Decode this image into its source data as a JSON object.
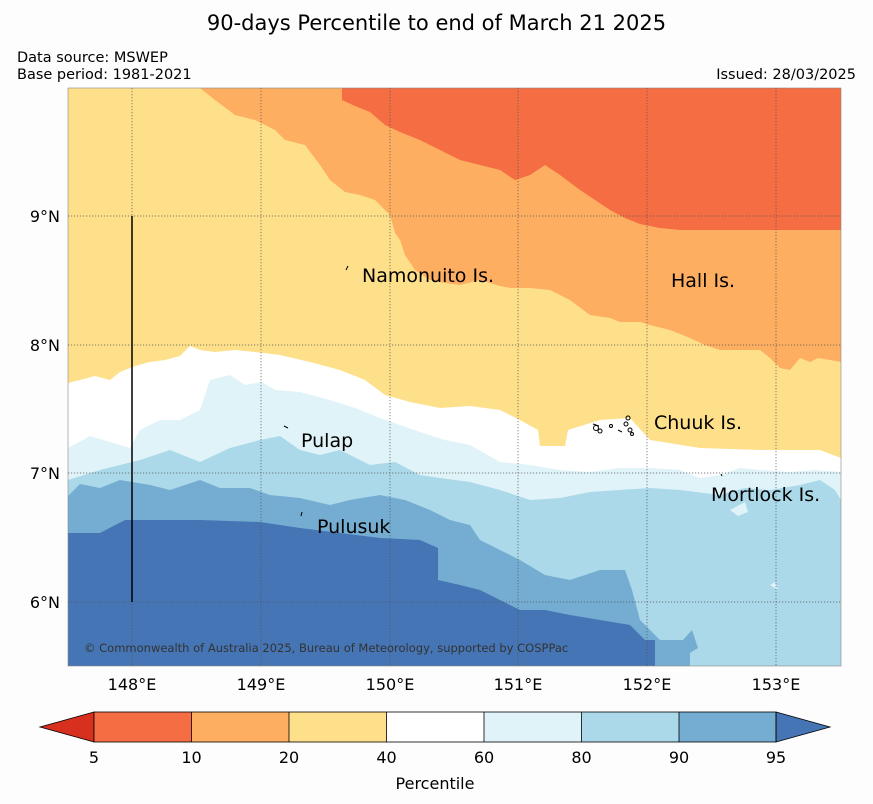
{
  "title": "90-days Percentile to end of March 21 2025",
  "data_source": "Data source: MSWEP",
  "base_period": "Base period: 1981-2021",
  "issued": "Issued: 28/03/2025",
  "copyright": "© Commonwealth of Australia 2025, Bureau of Meteorology, supported by COSPPac",
  "lon_ticks": [
    "148°E",
    "149°E",
    "150°E",
    "151°E",
    "152°E",
    "153°E"
  ],
  "lat_ticks": [
    "9°N",
    "8°N",
    "7°N",
    "6°N"
  ],
  "places": [
    {
      "name": "Namonuito Is.",
      "lon": 149.78,
      "lat": 8.55
    },
    {
      "name": "Hall Is.",
      "lon": 152.18,
      "lat": 8.49
    },
    {
      "name": "Pulap",
      "lon": 149.31,
      "lat": 7.26
    },
    {
      "name": "Chuuk Is.",
      "lon": 151.97,
      "lat": 7.36
    },
    {
      "name": "Mortlock Is.",
      "lon": 152.62,
      "lat": 6.82
    },
    {
      "name": "Pulusuk",
      "lon": 149.43,
      "lat": 6.59
    }
  ],
  "colorbar": {
    "label": "Percentile",
    "ticks": [
      "5",
      "10",
      "20",
      "40",
      "60",
      "80",
      "90",
      "95"
    ],
    "colors": [
      "#d7301f",
      "#f46d43",
      "#fdae61",
      "#fee08b",
      "#ffffff",
      "#e0f3f8",
      "#abd9e9",
      "#74add1",
      "#4575b4"
    ]
  },
  "map_extent": {
    "lon": [
      147.5,
      153.5
    ],
    "lat": [
      5.5,
      10.0
    ]
  }
}
